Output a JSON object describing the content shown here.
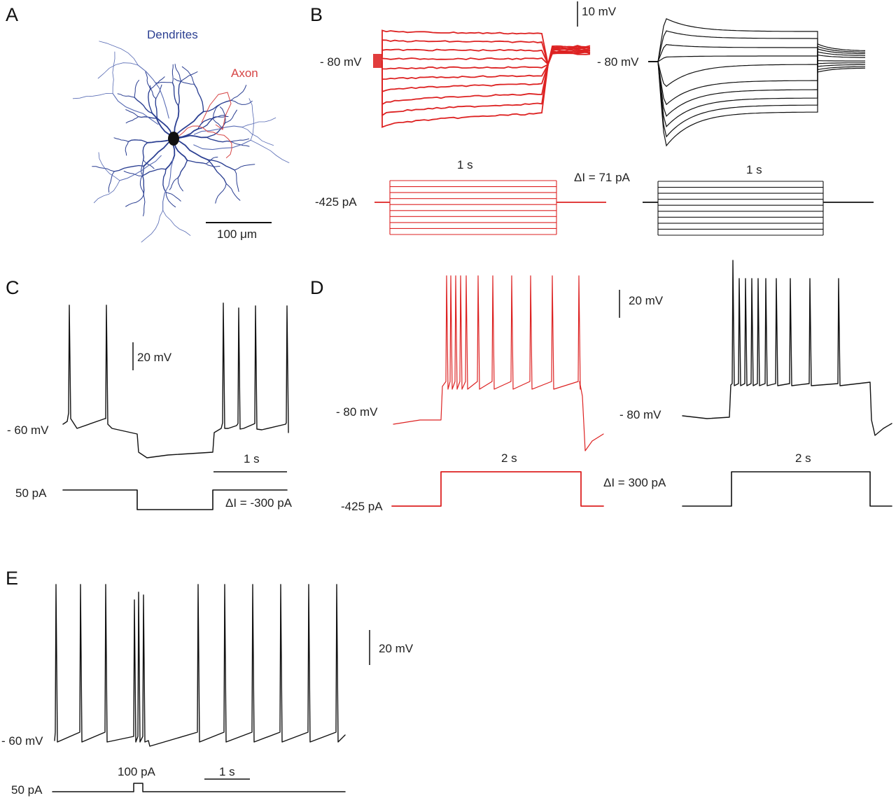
{
  "colors": {
    "model": "#111111",
    "experiment": "#dd2222",
    "dendrite": "#2b3f92",
    "axon": "#d64545"
  },
  "panel_a": {
    "letter": "A",
    "dendrites_label": "Dendrites",
    "axon_label": "Axon",
    "scale_label": "100 μm"
  },
  "panel_b": {
    "letter": "B",
    "scale_mv": "10 mV",
    "rest_label_exp": "- 80 mV",
    "rest_label_model": "- 80 mV",
    "duration_exp": "1 s",
    "duration_model": "1 s",
    "hold_current": "-425 pA",
    "delta_i": "ΔI = 71 pA",
    "sweep_count": 10
  },
  "panel_c": {
    "letter": "C",
    "scale_mv": "20 mV",
    "rest_label": "- 60 mV",
    "scale_time": "1 s",
    "hold_current": "50 pA",
    "delta_i": "ΔI = -300 pA"
  },
  "panel_d": {
    "letter": "D",
    "scale_mv": "20 mV",
    "rest_label_exp": "- 80 mV",
    "rest_label_model": "- 80 mV",
    "duration_exp": "2 s",
    "duration_model": "2 s",
    "hold_current": "-425 pA",
    "delta_i": "ΔI = 300 pA"
  },
  "panel_e": {
    "letter": "E",
    "scale_mv": "20 mV",
    "rest_label": "- 60 mV",
    "pulse_current": "100 pA",
    "scale_time": "1 s",
    "hold_current": "50 pA"
  }
}
